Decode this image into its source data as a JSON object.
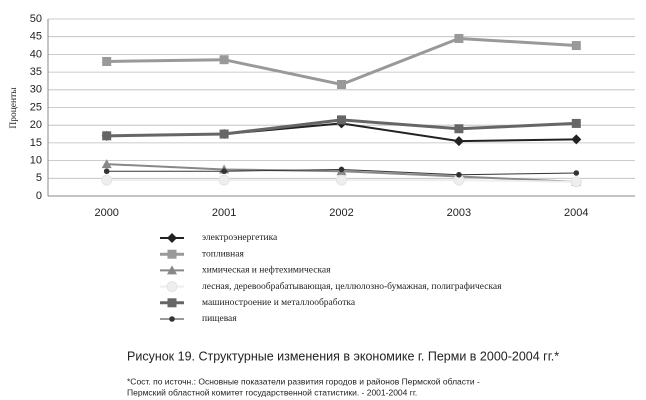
{
  "chart_data": {
    "type": "line",
    "y_label": "Проценты",
    "categories": [
      "2000",
      "2001",
      "2002",
      "2003",
      "2004"
    ],
    "series": [
      {
        "name": "электроэнергетика",
        "color": "#222222",
        "marker": "diamond",
        "values": [
          17,
          17.5,
          20.5,
          15.5,
          16
        ]
      },
      {
        "name": "топливная",
        "color": "#999999",
        "marker": "square",
        "values": [
          38,
          38.5,
          31.5,
          44.5,
          42.5
        ]
      },
      {
        "name": "химическая и нефтехимическая",
        "color": "#888888",
        "marker": "triangle",
        "values": [
          9,
          7.5,
          7,
          5.5,
          4
        ]
      },
      {
        "name": "лесная, деревообрабатывающая, целлюлозно-бумажная, полиграфическая",
        "color": "#eeeeee",
        "marker": "circle",
        "values": [
          4.5,
          4.5,
          4.5,
          4.5,
          4
        ]
      },
      {
        "name": "машиностроение и металлообработка",
        "color": "#666666",
        "marker": "square",
        "values": [
          17,
          17.5,
          21.5,
          19,
          20.5
        ]
      },
      {
        "name": "пищевая",
        "color": "#333333",
        "marker": "dot",
        "values": [
          7,
          7,
          7.5,
          6,
          6.5
        ]
      }
    ],
    "ylim": [
      0,
      50
    ],
    "yticks": [
      0,
      5,
      10,
      15,
      20,
      25,
      30,
      35,
      40,
      45,
      50
    ],
    "grid": true,
    "caption": "Рисунок 19. Структурные изменения в экономике г. Перми в 2000-2004 гг.*",
    "source": [
      "*Сост. по источн.: Основные показатели развития городов и районов Пермской области -",
      "Пермский областной комитет государственной статистики. - 2001-2004 гг."
    ]
  }
}
